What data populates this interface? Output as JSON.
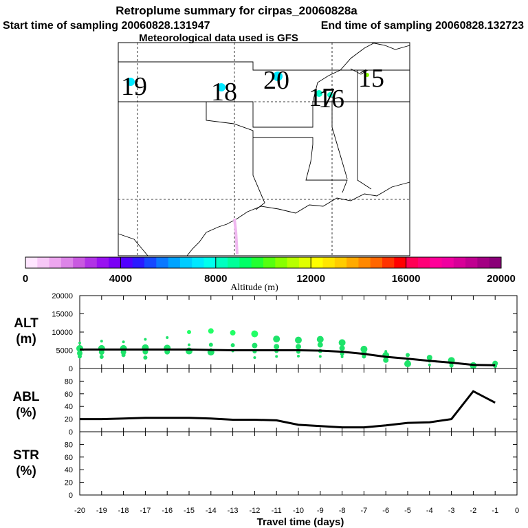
{
  "header": {
    "title": "Retroplume summary for cirpas_20060828a",
    "start_label": "Start time of sampling 20060828.131947",
    "end_label": "End time of sampling 20060828.132723",
    "met_label": "Meteorological data used is GFS"
  },
  "map": {
    "day_labels": [
      {
        "text": "19",
        "day": -19
      },
      {
        "text": "18",
        "day": -18
      },
      {
        "text": "20",
        "day": -20
      },
      {
        "text": "17",
        "day": -17
      },
      {
        "text": "16",
        "day": -16
      },
      {
        "text": "15",
        "day": -15
      }
    ]
  },
  "colorbar": {
    "label": "Altitude (m)",
    "tick_labels": [
      "0",
      "4000",
      "8000",
      "12000",
      "16000",
      "20000"
    ],
    "colors": [
      "#ffe6ff",
      "#f7c8f7",
      "#eda6ef",
      "#dd84e8",
      "#c95ae0",
      "#b133e6",
      "#9912f0",
      "#7a00f5",
      "#5000ff",
      "#2a1aff",
      "#1648ff",
      "#0a78ff",
      "#00a3ff",
      "#00ccff",
      "#00e8ff",
      "#00ffee",
      "#00ffc0",
      "#00ff99",
      "#00ff66",
      "#22ff33",
      "#55ff10",
      "#88ff00",
      "#b8ff00",
      "#e0ff00",
      "#ffff00",
      "#ffe600",
      "#ffcc00",
      "#ffaa00",
      "#ff8800",
      "#ff6600",
      "#ff3300",
      "#ff0000",
      "#ff0055",
      "#ff0077",
      "#ff0099",
      "#f000a0",
      "#d80098",
      "#c00090",
      "#a30083",
      "#8a0078"
    ]
  },
  "chart_data": [
    {
      "type": "line",
      "panel": "ALT",
      "ylabel": "ALT",
      "yunit": "(m)",
      "ylim": [
        0,
        20000
      ],
      "yticks": [
        0,
        5000,
        10000,
        15000,
        20000
      ],
      "ytick_labels": [
        "0",
        "5000",
        "10000",
        "15000",
        "20000"
      ],
      "x": [
        -20,
        -19,
        -18,
        -17,
        -16,
        -15,
        -14,
        -13,
        -12,
        -11,
        -10,
        -9,
        -8,
        -7,
        -6,
        -5,
        -4,
        -3,
        -2,
        -1
      ],
      "series": [
        {
          "name": "median altitude",
          "values": [
            5200,
            5200,
            5200,
            5200,
            5200,
            5200,
            5100,
            5000,
            5000,
            5000,
            5000,
            4900,
            4600,
            4000,
            3200,
            2700,
            2100,
            1600,
            1000,
            900
          ]
        }
      ],
      "scatter": [
        {
          "name": "particle altitude clusters",
          "points": [
            [
              -20,
              7000
            ],
            [
              -20,
              5500
            ],
            [
              -20,
              4200
            ],
            [
              -20,
              3300
            ],
            [
              -19,
              7500
            ],
            [
              -19,
              5500
            ],
            [
              -19,
              4500
            ],
            [
              -19,
              3200
            ],
            [
              -18,
              7300
            ],
            [
              -18,
              5500
            ],
            [
              -18,
              4500
            ],
            [
              -18,
              3700
            ],
            [
              -17,
              8000
            ],
            [
              -17,
              5700
            ],
            [
              -17,
              4600
            ],
            [
              -17,
              3000
            ],
            [
              -16,
              8500
            ],
            [
              -16,
              5600
            ],
            [
              -16,
              4600
            ],
            [
              -15,
              10000
            ],
            [
              -15,
              6500
            ],
            [
              -15,
              4800
            ],
            [
              -14,
              10300
            ],
            [
              -14,
              6500
            ],
            [
              -14,
              5200
            ],
            [
              -14,
              4500
            ],
            [
              -13,
              9800
            ],
            [
              -13,
              6400
            ],
            [
              -13,
              4800
            ],
            [
              -12,
              9500
            ],
            [
              -12,
              6300
            ],
            [
              -12,
              4700
            ],
            [
              -12,
              3000
            ],
            [
              -11,
              8100
            ],
            [
              -11,
              6000
            ],
            [
              -11,
              4800
            ],
            [
              -11,
              3300
            ],
            [
              -10,
              7800
            ],
            [
              -10,
              6000
            ],
            [
              -10,
              4600
            ],
            [
              -10,
              3400
            ],
            [
              -9,
              8000
            ],
            [
              -9,
              6500
            ],
            [
              -9,
              4800
            ],
            [
              -9,
              3300
            ],
            [
              -8,
              7100
            ],
            [
              -8,
              5600
            ],
            [
              -8,
              4000
            ],
            [
              -8,
              3200
            ],
            [
              -7,
              5300
            ],
            [
              -7,
              4200
            ],
            [
              -7,
              3300
            ],
            [
              -6,
              4700
            ],
            [
              -6,
              3600
            ],
            [
              -6,
              2300
            ],
            [
              -5,
              3700
            ],
            [
              -5,
              2500
            ],
            [
              -5,
              1300
            ],
            [
              -4,
              3000
            ],
            [
              -4,
              2200
            ],
            [
              -4,
              1000
            ],
            [
              -3,
              2200
            ],
            [
              -3,
              1700
            ],
            [
              -3,
              800
            ],
            [
              -2,
              1200
            ],
            [
              -2,
              800
            ],
            [
              -1,
              1400
            ],
            [
              -1,
              700
            ]
          ]
        }
      ]
    },
    {
      "type": "line",
      "panel": "ABL",
      "ylabel": "ABL",
      "yunit": "(%)",
      "ylim": [
        0,
        100
      ],
      "yticks": [
        0,
        20,
        40,
        60,
        80
      ],
      "ytick_labels": [
        "0",
        "20",
        "40",
        "60",
        "80"
      ],
      "x": [
        -20,
        -19,
        -18,
        -17,
        -16,
        -15,
        -14,
        -13,
        -12,
        -11,
        -10,
        -9,
        -8,
        -7,
        -6,
        -5,
        -4,
        -3,
        -2,
        -1
      ],
      "series": [
        {
          "name": "ABL fraction",
          "values": [
            20,
            20,
            21,
            22,
            22,
            22,
            21,
            19,
            19,
            18,
            11,
            9,
            7,
            7,
            10,
            14,
            15,
            20,
            64,
            46
          ]
        }
      ]
    },
    {
      "type": "line",
      "panel": "STR",
      "ylabel": "STR",
      "yunit": "(%)",
      "ylim": [
        0,
        100
      ],
      "yticks": [
        0,
        20,
        40,
        60,
        80
      ],
      "ytick_labels": [
        "0",
        "20",
        "40",
        "60",
        "80"
      ],
      "x": [],
      "series": []
    }
  ],
  "xaxis": {
    "label": "Travel time (days)",
    "ticks": [
      -20,
      -19,
      -18,
      -17,
      -16,
      -15,
      -14,
      -13,
      -12,
      -11,
      -10,
      -9,
      -8,
      -7,
      -6,
      -5,
      -4,
      -3,
      -2,
      -1,
      0
    ],
    "tick_labels": [
      "-20",
      "-19",
      "-18",
      "-17",
      "-16",
      "-15",
      "-14",
      "-13",
      "-12",
      "-11",
      "-10",
      "-9",
      "-8",
      "-7",
      "-6",
      "-5",
      "-4",
      "-3",
      "-2",
      "-1",
      "0"
    ]
  }
}
